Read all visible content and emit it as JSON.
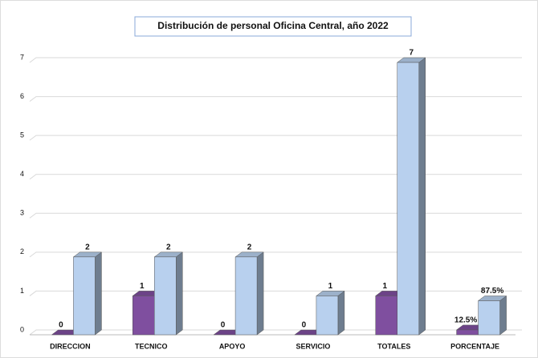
{
  "chart_data": {
    "type": "bar3d",
    "title": "Distribución de personal  Oficina Central, año 2022",
    "categories": [
      "DIRECCION",
      "TECNICO",
      "APOYO",
      "SERVICIO",
      "TOTALES",
      "PORCENTAJE"
    ],
    "series": [
      {
        "color": "#7f4f9f",
        "values": [
          0,
          1,
          0,
          0,
          1,
          0.125
        ],
        "value_labels": [
          "0",
          "1",
          "0",
          "0",
          "1",
          "12.5%"
        ]
      },
      {
        "color": "#b8d0ee",
        "values": [
          2,
          2,
          2,
          1,
          7,
          0.875
        ],
        "value_labels": [
          "2",
          "2",
          "2",
          "1",
          "7",
          "87.5%"
        ]
      }
    ],
    "ylim": [
      0,
      7
    ],
    "yticks": [
      0,
      1,
      2,
      3,
      4,
      5,
      6,
      7
    ],
    "grid": true
  }
}
